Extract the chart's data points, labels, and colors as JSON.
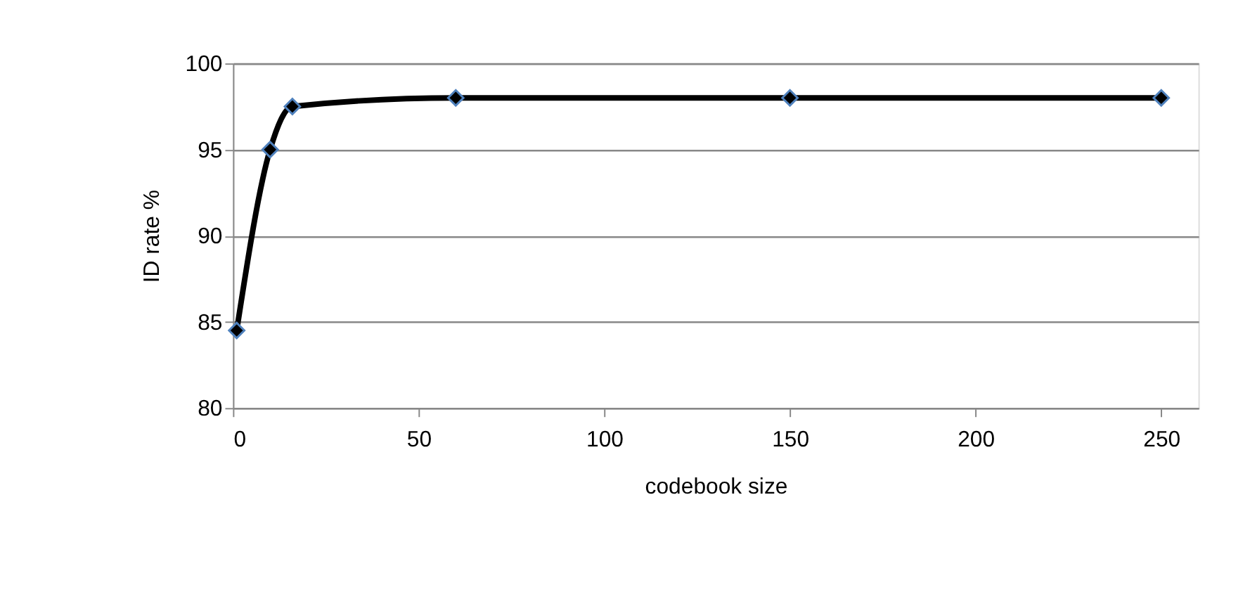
{
  "chart_data": {
    "type": "line",
    "xlabel": "codebook size",
    "ylabel": "ID rate %",
    "x": [
      1,
      10,
      16,
      60,
      150,
      250
    ],
    "series": [
      {
        "color": "#000000",
        "values": [
          84.5,
          95,
          97.5,
          98,
          98,
          98
        ]
      }
    ],
    "xlim": [
      0,
      260
    ],
    "xticks": [
      0,
      50,
      100,
      150,
      200,
      250
    ],
    "ylim": [
      80,
      100
    ],
    "yticks": [
      80,
      85,
      90,
      95,
      100
    ],
    "grid": "y",
    "marker": "diamond",
    "line_style": "solid"
  }
}
